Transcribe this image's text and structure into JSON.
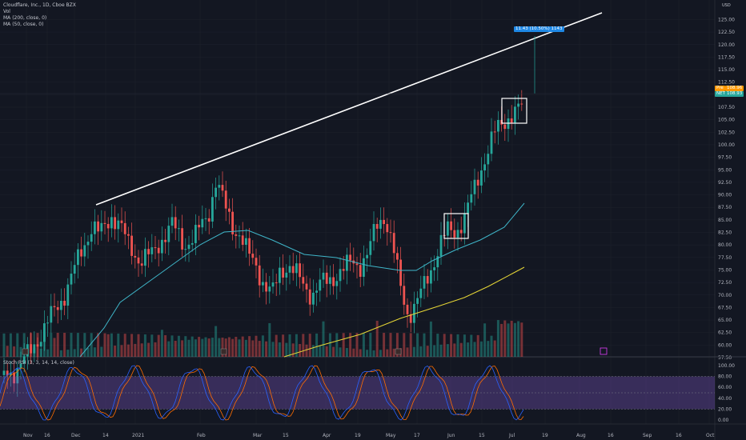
{
  "header": {
    "symbol_line": "Cloudflare, Inc., 1D, Cboe BZX",
    "indicators": [
      "Vol",
      "MA (200, close, 0)",
      "MA (50, close, 0)"
    ]
  },
  "price_axis": {
    "currency": "USD",
    "ticks": [
      "125.00",
      "122.50",
      "120.00",
      "117.50",
      "115.00",
      "112.50",
      "110.00",
      "107.50",
      "105.00",
      "102.50",
      "100.00",
      "97.50",
      "95.00",
      "92.50",
      "90.00",
      "87.50",
      "85.00",
      "82.50",
      "80.00",
      "77.50",
      "75.00",
      "72.50",
      "70.00",
      "67.50",
      "65.00",
      "62.50",
      "60.00",
      "57.50"
    ],
    "pre_label": "Pre",
    "pre_value": "108.96",
    "symbol_tag": "NET",
    "last_value": "108.93"
  },
  "measure_label": "11.43 (10.50%) 1143",
  "stoch": {
    "title": "Stoch RSI (3, 3, 14, 14, close)",
    "ticks": [
      "100.00",
      "80.00",
      "60.00",
      "40.00",
      "20.00",
      "0.00"
    ]
  },
  "time_axis": [
    "Nov",
    "16",
    "Dec",
    "14",
    "2021",
    "Feb",
    "Mar",
    "15",
    "Apr",
    "19",
    "May",
    "17",
    "Jun",
    "15",
    "Jul",
    "19",
    "Aug",
    "16",
    "Sep",
    "16",
    "Oct"
  ],
  "colors": {
    "background": "#131722",
    "up": "#26a69a",
    "down": "#ef5350",
    "ma50": "#3fb6c9",
    "ma200": "#e6d636",
    "trendline": "#ffffff",
    "stoch_k": "#2962ff",
    "stoch_d": "#ff6d00",
    "stoch_band": "#7e57c2",
    "measure": "#1e88e5",
    "pre_tag": "#ff9800"
  },
  "icons": [
    "earnings-icon",
    "dividend-icon"
  ]
}
